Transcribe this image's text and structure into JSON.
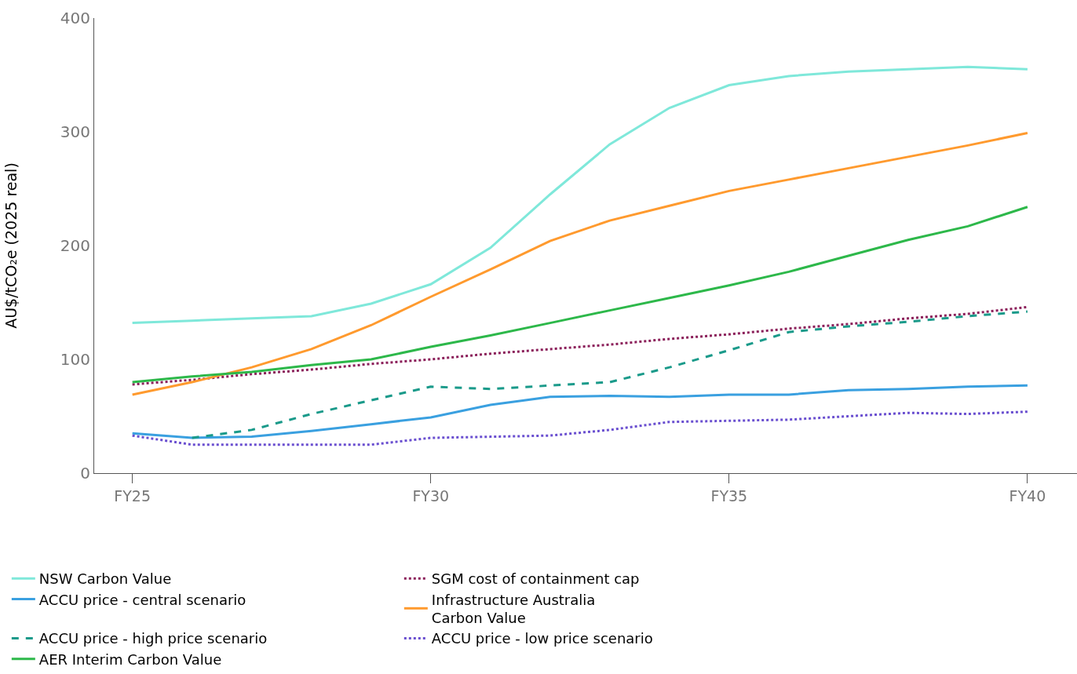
{
  "chart_data": {
    "type": "line",
    "ylabel": "AU$/tCO₂e (2025 real)",
    "categories": [
      "FY25",
      null,
      null,
      null,
      null,
      "FY30",
      null,
      null,
      null,
      null,
      "FY35",
      null,
      null,
      null,
      null,
      "FY40"
    ],
    "ylim": [
      0,
      400
    ],
    "yticks": [
      0,
      100,
      200,
      300,
      400
    ],
    "legend": "bottom",
    "series": [
      {
        "name": "NSW Carbon Value",
        "color": "#7fe8da",
        "line_style": "solid",
        "values": [
          132,
          134,
          136,
          138,
          149,
          166,
          198,
          245,
          289,
          321,
          341,
          349,
          353,
          355,
          357,
          355
        ]
      },
      {
        "name": "SGM cost of containment cap",
        "color": "#8b1f5a",
        "line_style": "dotted",
        "values": [
          78,
          82,
          87,
          91,
          96,
          100,
          105,
          109,
          113,
          118,
          122,
          127,
          131,
          136,
          140,
          146
        ]
      },
      {
        "name": "ACCU price - central scenario",
        "color": "#3aa0e0",
        "line_style": "solid",
        "values": [
          35,
          31,
          32,
          37,
          43,
          49,
          60,
          67,
          68,
          67,
          69,
          69,
          73,
          74,
          76,
          77
        ]
      },
      {
        "name": "Infrastructure Australia\nCarbon Value",
        "color": "#ff9a2e",
        "line_style": "solid",
        "values": [
          69,
          80,
          93,
          109,
          130,
          155,
          179,
          204,
          222,
          235,
          248,
          258,
          268,
          278,
          288,
          299
        ]
      },
      {
        "name": "ACCU price - high price scenario",
        "color": "#1a9a8a",
        "line_style": "dashed",
        "values": [
          null,
          31,
          38,
          52,
          64,
          76,
          74,
          77,
          80,
          93,
          108,
          124,
          129,
          133,
          138,
          142
        ]
      },
      {
        "name": "ACCU price - low price scenario",
        "color": "#6a4fd0",
        "line_style": "dotted",
        "values": [
          33,
          25,
          25,
          25,
          25,
          31,
          32,
          33,
          38,
          45,
          46,
          47,
          50,
          53,
          52,
          54
        ]
      },
      {
        "name": "AER Interim Carbon Value",
        "color": "#2db84a",
        "line_style": "solid",
        "values": [
          80,
          85,
          89,
          95,
          100,
          111,
          121,
          132,
          143,
          154,
          165,
          177,
          191,
          205,
          217,
          234
        ]
      }
    ]
  }
}
